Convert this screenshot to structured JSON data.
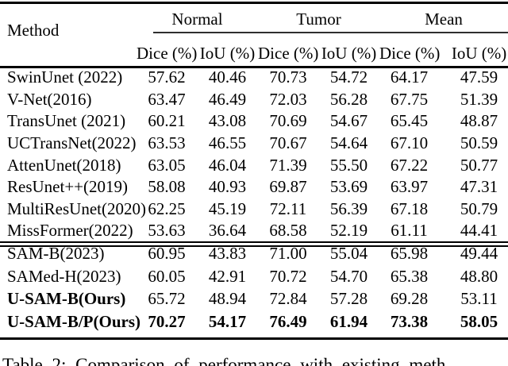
{
  "table": {
    "method_header": "Method",
    "groups": [
      "Normal",
      "Tumor",
      "Mean"
    ],
    "sub_headers": [
      "Dice (%)",
      "IoU (%)",
      "Dice (%)",
      "IoU (%)",
      "Dice (%)",
      "IoU (%)"
    ],
    "rows": [
      {
        "method": "SwinUnet (2022)",
        "values": [
          "57.62",
          "40.46",
          "70.73",
          "54.72",
          "64.17",
          "47.59"
        ],
        "bold_method": false,
        "bold_values": false,
        "section": 1
      },
      {
        "method": "V-Net(2016)",
        "values": [
          "63.47",
          "46.49",
          "72.03",
          "56.28",
          "67.75",
          "51.39"
        ],
        "bold_method": false,
        "bold_values": false,
        "section": 1
      },
      {
        "method": "TransUnet (2021)",
        "values": [
          "60.21",
          "43.08",
          "70.69",
          "54.67",
          "65.45",
          "48.87"
        ],
        "bold_method": false,
        "bold_values": false,
        "section": 1
      },
      {
        "method": "UCTransNet(2022)",
        "values": [
          "63.53",
          "46.55",
          "70.67",
          "54.64",
          "67.10",
          "50.59"
        ],
        "bold_method": false,
        "bold_values": false,
        "section": 1
      },
      {
        "method": "AttenUnet(2018)",
        "values": [
          "63.05",
          "46.04",
          "71.39",
          "55.50",
          "67.22",
          "50.77"
        ],
        "bold_method": false,
        "bold_values": false,
        "section": 1
      },
      {
        "method": "ResUnet++(2019)",
        "values": [
          "58.08",
          "40.93",
          "69.87",
          "53.69",
          "63.97",
          "47.31"
        ],
        "bold_method": false,
        "bold_values": false,
        "section": 1
      },
      {
        "method": "MultiResUnet(2020)",
        "values": [
          "62.25",
          "45.19",
          "72.11",
          "56.39",
          "67.18",
          "50.79"
        ],
        "bold_method": false,
        "bold_values": false,
        "section": 1
      },
      {
        "method": "MissFormer(2022)",
        "values": [
          "53.63",
          "36.64",
          "68.58",
          "52.19",
          "61.11",
          "44.41"
        ],
        "bold_method": false,
        "bold_values": false,
        "section": 1
      },
      {
        "method": "SAM-B(2023)",
        "values": [
          "60.95",
          "43.83",
          "71.00",
          "55.04",
          "65.98",
          "49.44"
        ],
        "bold_method": false,
        "bold_values": false,
        "section": 2
      },
      {
        "method": "SAMed-H(2023)",
        "values": [
          "60.05",
          "42.91",
          "70.72",
          "54.70",
          "65.38",
          "48.80"
        ],
        "bold_method": false,
        "bold_values": false,
        "section": 2
      },
      {
        "method": "U-SAM-B(Ours)",
        "values": [
          "65.72",
          "48.94",
          "72.84",
          "57.28",
          "69.28",
          "53.11"
        ],
        "bold_method": true,
        "bold_values": false,
        "section": 2
      },
      {
        "method": "U-SAM-B/P(Ours)",
        "values": [
          "70.27",
          "54.17",
          "76.49",
          "61.94",
          "73.38",
          "58.05"
        ],
        "bold_method": true,
        "bold_values": true,
        "section": 2
      }
    ]
  },
  "caption": "Table 2: Comparison of performance with existing meth"
}
